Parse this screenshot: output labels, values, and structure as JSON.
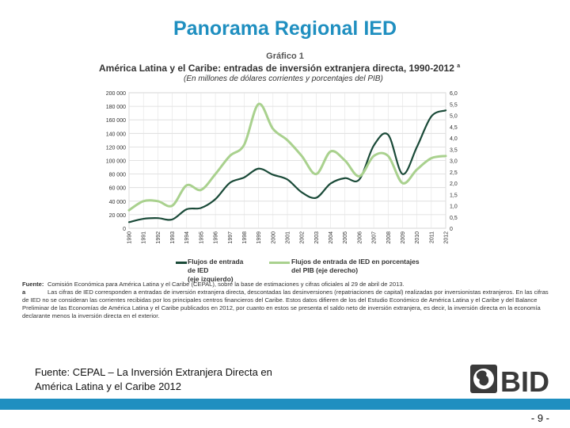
{
  "slide": {
    "title": "Panorama Regional IED",
    "source_footer_line1": "Fuente: CEPAL – La Inversión Extranjera Directa en",
    "source_footer_line2": "América Latina y el Caribe 2012",
    "page_number": "- 9 -",
    "logo_text": "BID",
    "accent_color": "#1f8fc0"
  },
  "figure": {
    "number": "Gráfico 1",
    "title": "América Latina y el Caribe: entradas de inversión extranjera directa, 1990-2012",
    "title_note_marker": "a",
    "subtitle": "(En millones de dólares corrientes y porcentajes del PIB)",
    "notes_source_label": "Fuente:",
    "notes_source_text": "Comisión Económica para América Latina y el Caribe (CEPAL), sobre la base de estimaciones y cifras oficiales al 29 de abril de 2013.",
    "notes_a_label": "a",
    "notes_a_text": "Las cifras de IED corresponden a entradas de inversión extranjera directa, descontadas las desinversiones (repatriaciones de capital) realizadas por inversionistas extranjeros. En las cifras de IED no se consideran las corrientes recibidas por los principales centros financieros del Caribe. Estos datos difieren de los del Estudio Económico de América Latina y el Caribe y del Balance Preliminar de las Economías de América Latina y el Caribe publicados en 2012, por cuanto en estos se presenta el saldo neto de inversión extranjera, es decir, la inversión directa en la economía declarante menos la inversión directa en el exterior."
  },
  "chart_data": {
    "type": "line",
    "x": [
      "1990",
      "1991",
      "1992",
      "1993",
      "1994",
      "1995",
      "1996",
      "1997",
      "1998",
      "1999",
      "2000",
      "2001",
      "2002",
      "2003",
      "2004",
      "2005",
      "2006",
      "2007",
      "2008",
      "2009",
      "2010",
      "2011",
      "2012"
    ],
    "series": [
      {
        "name": "Flujos de entrada de IED (eje izquierdo)",
        "axis": "left",
        "color": "#1a4a38",
        "values": [
          9000,
          14000,
          15000,
          13000,
          28000,
          30000,
          43000,
          67000,
          75000,
          88000,
          79000,
          72000,
          53000,
          45000,
          66000,
          74000,
          72000,
          122000,
          138000,
          80000,
          120000,
          165000,
          174000
        ]
      },
      {
        "name": "Flujos de entrada de IED en porcentajes del PIB (eje derecho)",
        "axis": "right",
        "color": "#a9d18e",
        "values": [
          0.8,
          1.2,
          1.2,
          1.0,
          1.9,
          1.7,
          2.4,
          3.2,
          3.7,
          5.5,
          4.4,
          3.9,
          3.2,
          2.4,
          3.4,
          3.0,
          2.3,
          3.2,
          3.2,
          2.0,
          2.6,
          3.1,
          3.2
        ]
      }
    ],
    "yleft_ticks": [
      "0",
      "20 000",
      "40 000",
      "60 000",
      "80 000",
      "100 000",
      "120 000",
      "140 000",
      "160 000",
      "180 000",
      "200 000"
    ],
    "yright_ticks": [
      "0",
      "0,5",
      "1,0",
      "1,5",
      "2,0",
      "2,5",
      "3,0",
      "3,5",
      "4,0",
      "4,5",
      "5,0",
      "5,5",
      "6,0"
    ],
    "ylim_left": [
      0,
      200000
    ],
    "ylim_right": [
      0,
      6.0
    ],
    "legend": [
      {
        "label_line1": "Flujos de entrada de IED",
        "label_line2": "(eje izquierdo)"
      },
      {
        "label_line1": "Flujos de entrada de IED en porcentajes",
        "label_line2": "del PIB (eje derecho)"
      }
    ],
    "grid": true,
    "legend_position": "bottom"
  }
}
